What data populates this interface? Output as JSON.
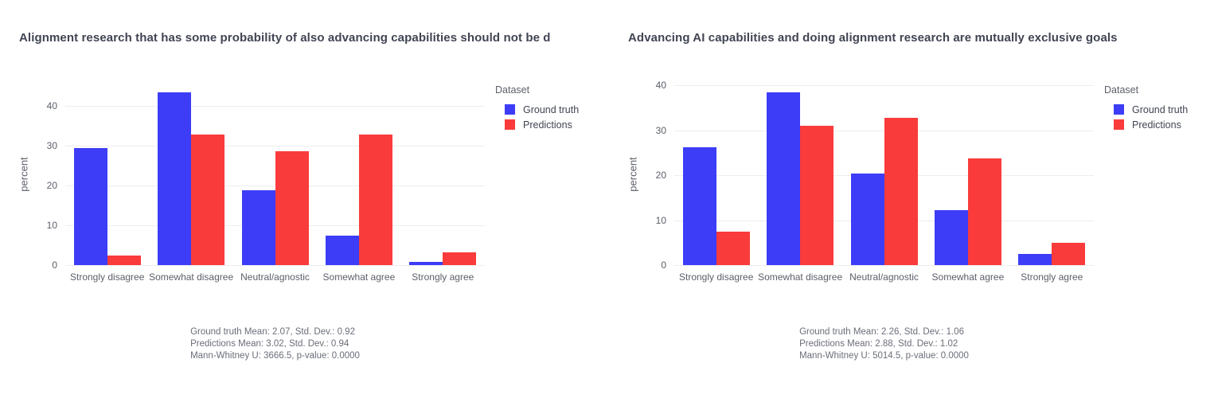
{
  "colors": {
    "ground_truth": "#3d3df7",
    "predictions": "#fa3b3b",
    "gridline": "#ededf0",
    "title_text": "#414553",
    "axis_text": "#5c5f69",
    "footer_text": "#6b6e79",
    "background": "#ffffff"
  },
  "chart_data": [
    {
      "type": "bar",
      "title": "Alignment research that has some probability of also advancing capabilities should not be d",
      "xlabel": "",
      "ylabel": "percent",
      "ylim": [
        0,
        45.6
      ],
      "yticks": [
        0,
        10,
        20,
        30,
        40
      ],
      "grid": true,
      "legend_title": "Dataset",
      "legend_position": "right",
      "categories": [
        "Strongly disagree",
        "Somewhat disagree",
        "Neutral/agnostic",
        "Somewhat agree",
        "Strongly agree"
      ],
      "series": [
        {
          "name": "Ground truth",
          "color": "#3d3df7",
          "values": [
            29.5,
            43.5,
            18.9,
            7.4,
            0.8
          ]
        },
        {
          "name": "Predictions",
          "color": "#fa3b3b",
          "values": [
            2.5,
            32.8,
            28.7,
            32.8,
            3.3
          ]
        }
      ],
      "annotations": [
        "Ground truth Mean: 2.07, Std. Dev.: 0.92",
        "Predictions Mean: 3.02, Std. Dev.: 0.94",
        "Mann-Whitney U: 3666.5, p-value: 0.0000"
      ]
    },
    {
      "type": "bar",
      "title": "Advancing AI capabilities and doing alignment research are mutually exclusive goals",
      "xlabel": "",
      "ylabel": "percent",
      "ylim": [
        0,
        40.4
      ],
      "yticks": [
        0,
        10,
        20,
        30,
        40
      ],
      "grid": true,
      "legend_title": "Dataset",
      "legend_position": "right",
      "categories": [
        "Strongly disagree",
        "Somewhat disagree",
        "Neutral/agnostic",
        "Somewhat agree",
        "Strongly agree"
      ],
      "series": [
        {
          "name": "Ground truth",
          "color": "#3d3df7",
          "values": [
            26.2,
            38.5,
            20.4,
            12.3,
            2.5
          ]
        },
        {
          "name": "Predictions",
          "color": "#fa3b3b",
          "values": [
            7.4,
            31.1,
            32.8,
            23.8,
            5.0
          ]
        }
      ],
      "annotations": [
        "Ground truth Mean: 2.26, Std. Dev.: 1.06",
        "Predictions Mean: 2.88, Std. Dev.: 1.02",
        "Mann-Whitney U: 5014.5, p-value: 0.0000"
      ]
    }
  ]
}
